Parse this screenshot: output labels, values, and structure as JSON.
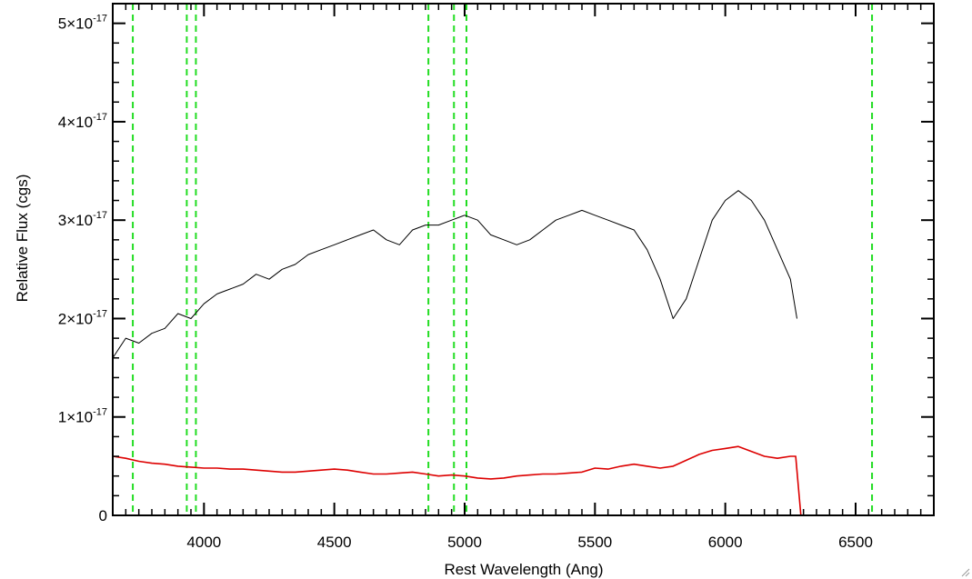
{
  "chart_data": {
    "type": "line",
    "title": "",
    "xlabel": "Rest Wavelength (Ang)",
    "ylabel": "Relative Flux (cgs)",
    "xlim": [
      3650,
      6800
    ],
    "ylim": [
      0,
      5.2e-17
    ],
    "x_ticks": [
      4000,
      4500,
      5000,
      5500,
      6000,
      6500
    ],
    "x_tick_labels": [
      "4000",
      "4500",
      "5000",
      "5500",
      "6000",
      "6500"
    ],
    "y_ticks": [
      {
        "value": 0,
        "mantissa": "0",
        "exponent": ""
      },
      {
        "value": 1e-17,
        "mantissa": "1×10",
        "exponent": "-17"
      },
      {
        "value": 2e-17,
        "mantissa": "2×10",
        "exponent": "-17"
      },
      {
        "value": 3e-17,
        "mantissa": "3×10",
        "exponent": "-17"
      },
      {
        "value": 4e-17,
        "mantissa": "4×10",
        "exponent": "-17"
      },
      {
        "value": 5e-17,
        "mantissa": "5×10",
        "exponent": "-17"
      }
    ],
    "grid": false,
    "vertical_lines": {
      "style": "dashed",
      "color": "#22dd22",
      "x": [
        3727,
        3934,
        3969,
        4861,
        4959,
        5007,
        6563
      ]
    },
    "series": [
      {
        "color": "#000000",
        "x": [
          3650,
          3700,
          3750,
          3800,
          3850,
          3900,
          3950,
          4000,
          4050,
          4100,
          4150,
          4200,
          4250,
          4300,
          4350,
          4400,
          4450,
          4500,
          4550,
          4600,
          4650,
          4700,
          4750,
          4800,
          4850,
          4900,
          4950,
          5000,
          5050,
          5100,
          5150,
          5200,
          5250,
          5300,
          5350,
          5400,
          5450,
          5500,
          5550,
          5600,
          5650,
          5700,
          5750,
          5800,
          5850,
          5900,
          5950,
          6000,
          6050,
          6100,
          6150,
          6200,
          6250,
          6275
        ],
        "y": [
          1.6e-17,
          1.8e-17,
          1.75e-17,
          1.85e-17,
          1.9e-17,
          2.05e-17,
          2e-17,
          2.15e-17,
          2.25e-17,
          2.3e-17,
          2.35e-17,
          2.45e-17,
          2.4e-17,
          2.5e-17,
          2.55e-17,
          2.65e-17,
          2.7e-17,
          2.75e-17,
          2.8e-17,
          2.85e-17,
          2.9e-17,
          2.8e-17,
          2.75e-17,
          2.9e-17,
          2.95e-17,
          2.95e-17,
          3e-17,
          3.05e-17,
          3e-17,
          2.85e-17,
          2.8e-17,
          2.75e-17,
          2.8e-17,
          2.9e-17,
          3e-17,
          3.05e-17,
          3.1e-17,
          3.05e-17,
          3e-17,
          2.95e-17,
          2.9e-17,
          2.7e-17,
          2.4e-17,
          2e-17,
          2.2e-17,
          2.6e-17,
          3e-17,
          3.2e-17,
          3.3e-17,
          3.2e-17,
          3e-17,
          2.7e-17,
          2.4e-17,
          2e-17
        ]
      },
      {
        "color": "#dd0000",
        "x": [
          3650,
          3700,
          3750,
          3800,
          3850,
          3900,
          3950,
          4000,
          4050,
          4100,
          4150,
          4200,
          4250,
          4300,
          4350,
          4400,
          4450,
          4500,
          4550,
          4600,
          4650,
          4700,
          4750,
          4800,
          4850,
          4900,
          4950,
          5000,
          5050,
          5100,
          5150,
          5200,
          5250,
          5300,
          5350,
          5400,
          5450,
          5500,
          5550,
          5600,
          5650,
          5700,
          5750,
          5800,
          5850,
          5900,
          5950,
          6000,
          6050,
          6100,
          6150,
          6200,
          6250,
          6270,
          6290,
          6400,
          6500,
          6600,
          6700,
          6800
        ],
        "y": [
          6e-18,
          5.8e-18,
          5.5e-18,
          5.3e-18,
          5.2e-18,
          5e-18,
          4.9e-18,
          4.8e-18,
          4.8e-18,
          4.7e-18,
          4.7e-18,
          4.6e-18,
          4.5e-18,
          4.4e-18,
          4.4e-18,
          4.5e-18,
          4.6e-18,
          4.7e-18,
          4.6e-18,
          4.4e-18,
          4.2e-18,
          4.2e-18,
          4.3e-18,
          4.4e-18,
          4.2e-18,
          4e-18,
          4.1e-18,
          4e-18,
          3.8e-18,
          3.7e-18,
          3.8e-18,
          4e-18,
          4.1e-18,
          4.2e-18,
          4.2e-18,
          4.3e-18,
          4.4e-18,
          4.8e-18,
          4.7e-18,
          5e-18,
          5.2e-18,
          5e-18,
          4.8e-18,
          5e-18,
          5.6e-18,
          6.2e-18,
          6.6e-18,
          6.8e-18,
          7e-18,
          6.5e-18,
          6e-18,
          5.8e-18,
          6e-18,
          6e-18,
          0.0,
          0.0,
          0.0,
          0.0,
          0.0,
          0.0
        ]
      }
    ]
  }
}
